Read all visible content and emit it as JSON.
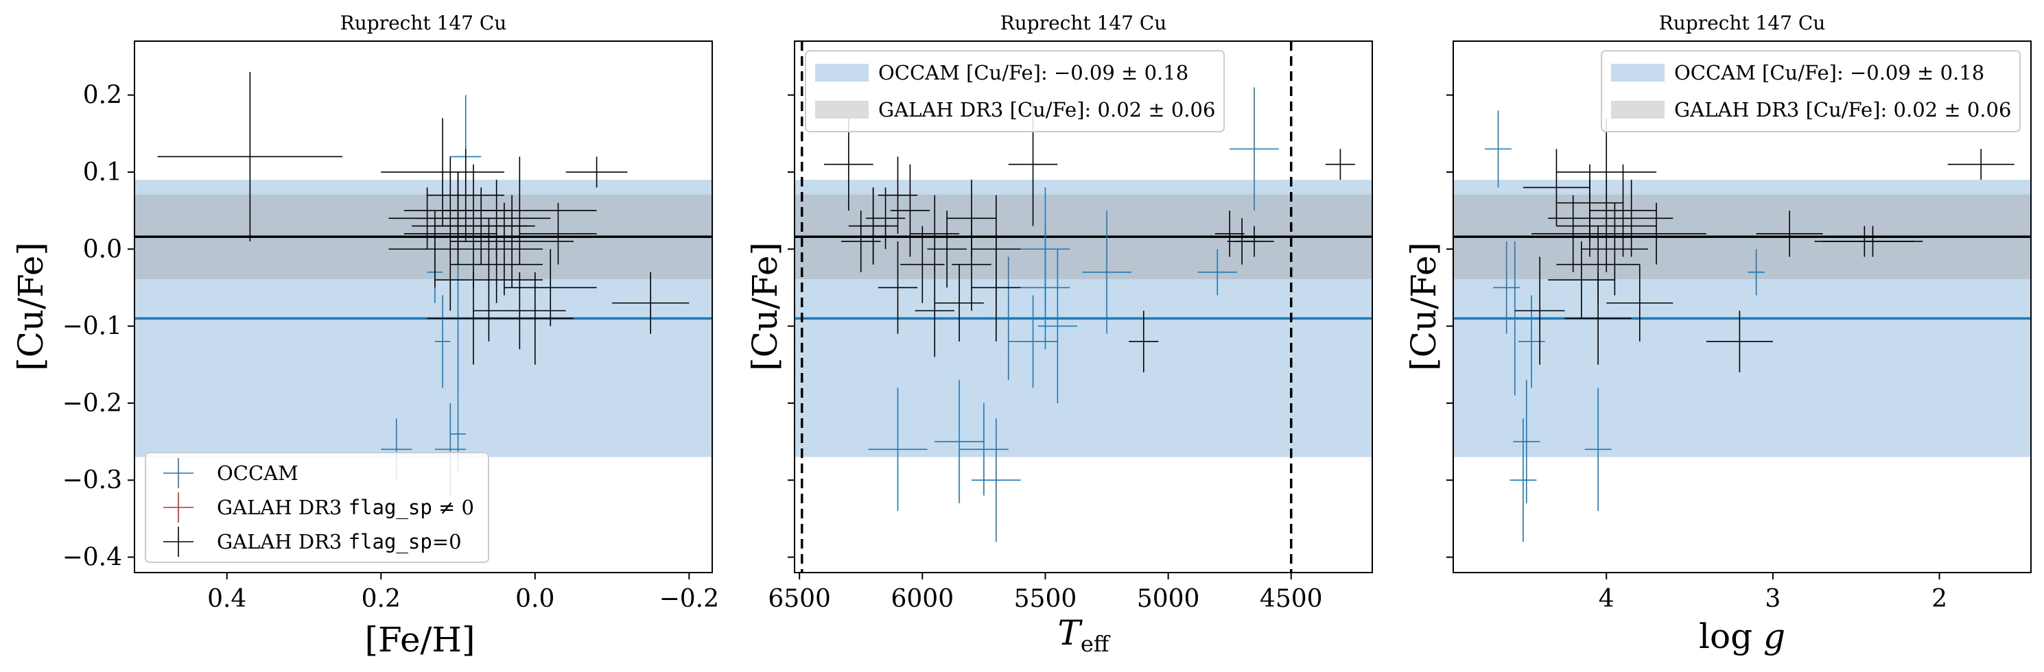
{
  "colors": {
    "occam": "#1f77b4",
    "galah": "#000000",
    "galah_flagged": "#d62728",
    "occam_band": "#c6dbed",
    "overlap_band": "#b8c4d0"
  },
  "chart_data": [
    {
      "type": "scatter",
      "title": "Ruprecht 147 Cu",
      "xlabel": "[Fe/H]",
      "ylabel": "[Cu/Fe]",
      "xlim": [
        0.52,
        -0.23
      ],
      "ylim": [
        -0.42,
        0.27
      ],
      "xticks": [
        0.4,
        0.2,
        0.0,
        -0.2
      ],
      "xtick_labels": [
        "0.4",
        "0.2",
        "0.0",
        "−0.2"
      ],
      "yticks": [
        0.2,
        0.1,
        0.0,
        -0.1,
        -0.2,
        -0.3,
        -0.4
      ],
      "ytick_labels": [
        "0.2",
        "0.1",
        "0.0",
        "−0.1",
        "−0.2",
        "−0.3",
        "−0.4"
      ],
      "show_ytick_labels": true,
      "occam_mean": -0.09,
      "occam_std": 0.18,
      "galah_mean": 0.016,
      "galah_std": 0.055,
      "legend": {
        "position": "lower-left",
        "entries": [
          {
            "text": "OCCAM",
            "mono": "",
            "suffix": "",
            "color": "occam"
          },
          {
            "text": "GALAH DR3 ",
            "mono": "flag_sp",
            "suffix": " ≠ 0",
            "color": "galah_flagged"
          },
          {
            "text": "GALAH DR3 ",
            "mono": "flag_sp",
            "suffix": "=0",
            "color": "galah"
          }
        ]
      },
      "occam_points": [
        [
          0.13,
          -0.03,
          0.01,
          0.04
        ],
        [
          0.12,
          -0.12,
          0.01,
          0.06
        ],
        [
          0.1,
          -0.09,
          0.01,
          0.1
        ],
        [
          0.09,
          0.12,
          0.02,
          0.08
        ],
        [
          0.11,
          -0.26,
          0.02,
          0.06
        ],
        [
          0.18,
          -0.26,
          0.02,
          0.04
        ],
        [
          0.1,
          -0.24,
          0.01,
          0.05
        ]
      ],
      "galah_points": [
        [
          0.37,
          0.12,
          0.12,
          0.11
        ],
        [
          0.12,
          0.1,
          0.08,
          0.07
        ],
        [
          0.02,
          0.05,
          0.1,
          0.07
        ],
        [
          0.1,
          0.04,
          0.06,
          0.06
        ],
        [
          0.08,
          0.03,
          0.08,
          0.08
        ],
        [
          0.05,
          0.04,
          0.07,
          0.05
        ],
        [
          -0.08,
          0.1,
          0.04,
          0.02
        ],
        [
          0.13,
          0.0,
          0.06,
          0.05
        ],
        [
          -0.03,
          0.02,
          0.05,
          0.04
        ],
        [
          0.05,
          -0.02,
          0.06,
          0.05
        ],
        [
          0.0,
          -0.09,
          0.05,
          0.06
        ],
        [
          0.08,
          -0.09,
          0.06,
          0.06
        ],
        [
          -0.15,
          -0.07,
          0.05,
          0.04
        ],
        [
          0.1,
          0.05,
          0.07,
          0.05
        ],
        [
          0.03,
          0.01,
          0.08,
          0.06
        ],
        [
          0.06,
          -0.04,
          0.07,
          0.08
        ],
        [
          0.11,
          0.02,
          0.06,
          0.1
        ],
        [
          0.09,
          0.07,
          0.05,
          0.06
        ],
        [
          -0.02,
          -0.05,
          0.06,
          0.05
        ],
        [
          0.07,
          0.03,
          0.06,
          0.05
        ],
        [
          0.02,
          -0.08,
          0.06,
          0.05
        ],
        [
          0.14,
          0.04,
          0.05,
          0.04
        ],
        [
          0.04,
          0.0,
          0.05,
          0.06
        ]
      ]
    },
    {
      "type": "scatter",
      "title": "Ruprecht 147 Cu",
      "xlabel": "T_eff",
      "ylabel": "[Cu/Fe]",
      "xlim": [
        6520,
        4170
      ],
      "ylim": [
        -0.42,
        0.27
      ],
      "xticks": [
        6500,
        6000,
        5500,
        5000,
        4500
      ],
      "xtick_labels": [
        "6500",
        "6000",
        "5500",
        "5000",
        "4500"
      ],
      "yticks": [
        0.2,
        0.1,
        0.0,
        -0.1,
        -0.2,
        -0.3,
        -0.4
      ],
      "ytick_labels": [],
      "show_ytick_labels": false,
      "vlines": [
        6490,
        4500
      ],
      "occam_mean": -0.09,
      "occam_std": 0.18,
      "galah_mean": 0.016,
      "galah_std": 0.055,
      "legend": {
        "position": "upper-left",
        "entries": [
          {
            "text": "OCCAM [Cu/Fe]:  ",
            "math": "−0.09 ± 0.18",
            "swatch": "occam_band"
          },
          {
            "text": "GALAH DR3 [Cu/Fe]:  ",
            "math": "0.02 ± 0.06",
            "swatch": "galah_band"
          }
        ]
      },
      "occam_points": [
        [
          4650,
          0.13,
          100,
          0.08
        ],
        [
          4800,
          -0.03,
          80,
          0.03
        ],
        [
          5250,
          -0.03,
          100,
          0.08
        ],
        [
          5500,
          -0.05,
          100,
          0.08
        ],
        [
          5450,
          -0.1,
          80,
          0.1
        ],
        [
          5550,
          -0.12,
          100,
          0.06
        ],
        [
          5650,
          -0.09,
          100,
          0.08
        ],
        [
          5850,
          -0.25,
          100,
          0.08
        ],
        [
          5750,
          -0.26,
          100,
          0.06
        ],
        [
          6100,
          -0.26,
          120,
          0.08
        ],
        [
          5700,
          -0.3,
          100,
          0.08
        ],
        [
          5500,
          0.0,
          100,
          0.08
        ]
      ],
      "galah_points": [
        [
          4300,
          0.11,
          60,
          0.02
        ],
        [
          5550,
          0.11,
          100,
          0.08
        ],
        [
          6300,
          0.11,
          100,
          0.06
        ],
        [
          6100,
          0.07,
          80,
          0.05
        ],
        [
          6200,
          0.03,
          100,
          0.05
        ],
        [
          6050,
          0.05,
          80,
          0.06
        ],
        [
          5950,
          0.02,
          100,
          0.05
        ],
        [
          6150,
          0.04,
          80,
          0.04
        ],
        [
          5800,
          0.04,
          100,
          0.05
        ],
        [
          6000,
          -0.02,
          90,
          0.05
        ],
        [
          6250,
          0.01,
          80,
          0.04
        ],
        [
          5900,
          0.0,
          80,
          0.05
        ],
        [
          4750,
          0.02,
          60,
          0.03
        ],
        [
          4650,
          0.01,
          80,
          0.02
        ],
        [
          4700,
          0.01,
          60,
          0.03
        ],
        [
          5100,
          -0.12,
          60,
          0.04
        ],
        [
          5950,
          -0.08,
          80,
          0.06
        ],
        [
          5850,
          -0.07,
          100,
          0.05
        ],
        [
          5700,
          -0.05,
          100,
          0.07
        ],
        [
          5800,
          -0.02,
          80,
          0.06
        ],
        [
          6100,
          -0.05,
          80,
          0.06
        ],
        [
          5700,
          0.0,
          100,
          0.07
        ],
        [
          6200,
          0.03,
          60,
          0.05
        ]
      ]
    },
    {
      "type": "scatter",
      "title": "Ruprecht 147 Cu",
      "xlabel": "log g",
      "ylabel": "[Cu/Fe]",
      "xlim": [
        4.92,
        1.45
      ],
      "ylim": [
        -0.42,
        0.27
      ],
      "xticks": [
        4,
        3,
        2
      ],
      "xtick_labels": [
        "4",
        "3",
        "2"
      ],
      "yticks": [
        0.2,
        0.1,
        0.0,
        -0.1,
        -0.2,
        -0.3,
        -0.4
      ],
      "ytick_labels": [],
      "show_ytick_labels": false,
      "occam_mean": -0.09,
      "occam_std": 0.18,
      "galah_mean": 0.016,
      "galah_std": 0.055,
      "legend": {
        "position": "upper-right",
        "entries": [
          {
            "text": "OCCAM [Cu/Fe]:  ",
            "math": "−0.09 ± 0.18",
            "swatch": "occam_band"
          },
          {
            "text": "GALAH DR3 [Cu/Fe]:  ",
            "math": "0.02 ± 0.06",
            "swatch": "galah_band"
          }
        ]
      },
      "occam_points": [
        [
          4.65,
          0.13,
          0.08,
          0.05
        ],
        [
          3.1,
          -0.03,
          0.05,
          0.03
        ],
        [
          4.55,
          -0.09,
          0.08,
          0.1
        ],
        [
          4.45,
          -0.12,
          0.08,
          0.06
        ],
        [
          4.48,
          -0.25,
          0.08,
          0.08
        ],
        [
          4.05,
          -0.26,
          0.08,
          0.08
        ],
        [
          4.5,
          -0.3,
          0.08,
          0.08
        ],
        [
          4.6,
          -0.05,
          0.08,
          0.06
        ]
      ],
      "galah_points": [
        [
          1.75,
          0.11,
          0.2,
          0.02
        ],
        [
          4.0,
          0.1,
          0.3,
          0.07
        ],
        [
          4.3,
          0.08,
          0.2,
          0.05
        ],
        [
          3.9,
          0.05,
          0.2,
          0.06
        ],
        [
          4.1,
          0.04,
          0.25,
          0.05
        ],
        [
          4.0,
          0.03,
          0.3,
          0.06
        ],
        [
          4.2,
          0.02,
          0.25,
          0.05
        ],
        [
          3.95,
          0.0,
          0.2,
          0.06
        ],
        [
          4.05,
          -0.02,
          0.25,
          0.05
        ],
        [
          2.4,
          0.01,
          0.3,
          0.02
        ],
        [
          2.45,
          0.01,
          0.3,
          0.02
        ],
        [
          2.9,
          0.02,
          0.2,
          0.03
        ],
        [
          3.2,
          -0.12,
          0.2,
          0.04
        ],
        [
          4.05,
          -0.09,
          0.2,
          0.06
        ],
        [
          3.8,
          -0.07,
          0.2,
          0.05
        ],
        [
          4.15,
          -0.04,
          0.2,
          0.05
        ],
        [
          4.4,
          -0.08,
          0.15,
          0.07
        ],
        [
          3.85,
          0.04,
          0.25,
          0.05
        ],
        [
          4.1,
          0.06,
          0.2,
          0.05
        ],
        [
          3.7,
          0.02,
          0.3,
          0.04
        ]
      ]
    }
  ]
}
